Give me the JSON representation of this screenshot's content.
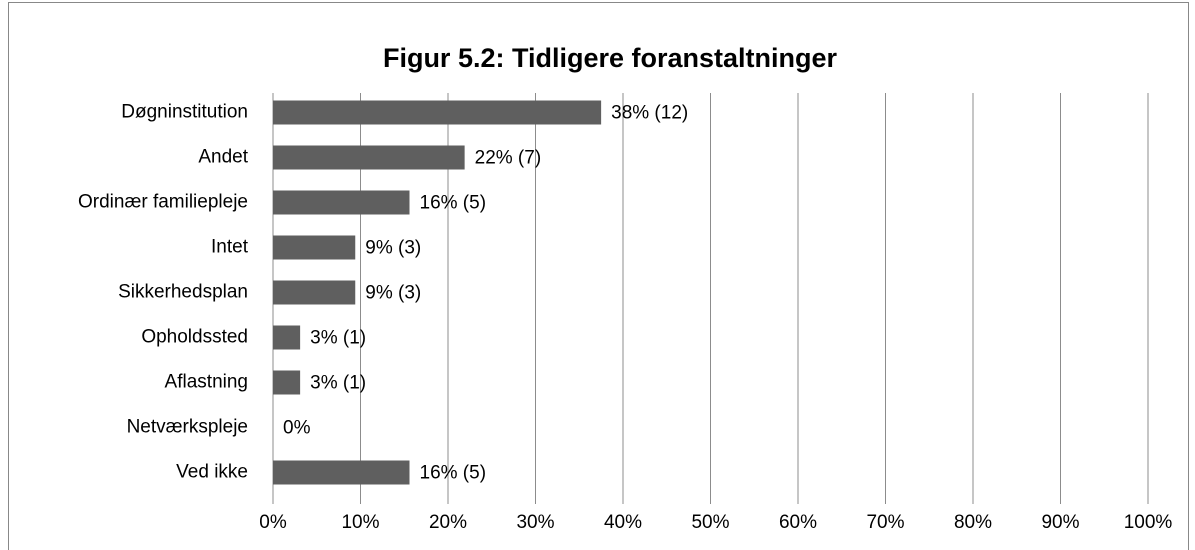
{
  "chart_data": {
    "type": "hbar",
    "title": "Figur 5.2: Tidligere foranstaltninger",
    "categories": [
      "Døgninstitution",
      "Andet",
      "Ordinær familiepleje",
      "Intet",
      "Sikkerhedsplan",
      "Opholdssted",
      "Aflastning",
      "Netværkspleje",
      "Ved ikke"
    ],
    "values": [
      37.5,
      21.9,
      15.6,
      9.4,
      9.4,
      3.1,
      3.1,
      0,
      15.6
    ],
    "value_labels": [
      "38% (12)",
      "22% (7)",
      "16% (5)",
      "9% (3)",
      "9% (3)",
      "3% (1)",
      "3% (1)",
      "0%",
      "16% (5)"
    ],
    "color": "#5f5f5f",
    "xlim": [
      0,
      100
    ],
    "xticks": [
      {
        "value": 0,
        "label": "0%"
      },
      {
        "value": 10,
        "label": "10%"
      },
      {
        "value": 20,
        "label": "20%"
      },
      {
        "value": 30,
        "label": "30%"
      },
      {
        "value": 40,
        "label": "40%"
      },
      {
        "value": 50,
        "label": "50%"
      },
      {
        "value": 60,
        "label": "60%"
      },
      {
        "value": 70,
        "label": "70%"
      },
      {
        "value": 80,
        "label": "80%"
      },
      {
        "value": 90,
        "label": "90%"
      },
      {
        "value": 100,
        "label": "100%"
      }
    ],
    "grid": true
  }
}
